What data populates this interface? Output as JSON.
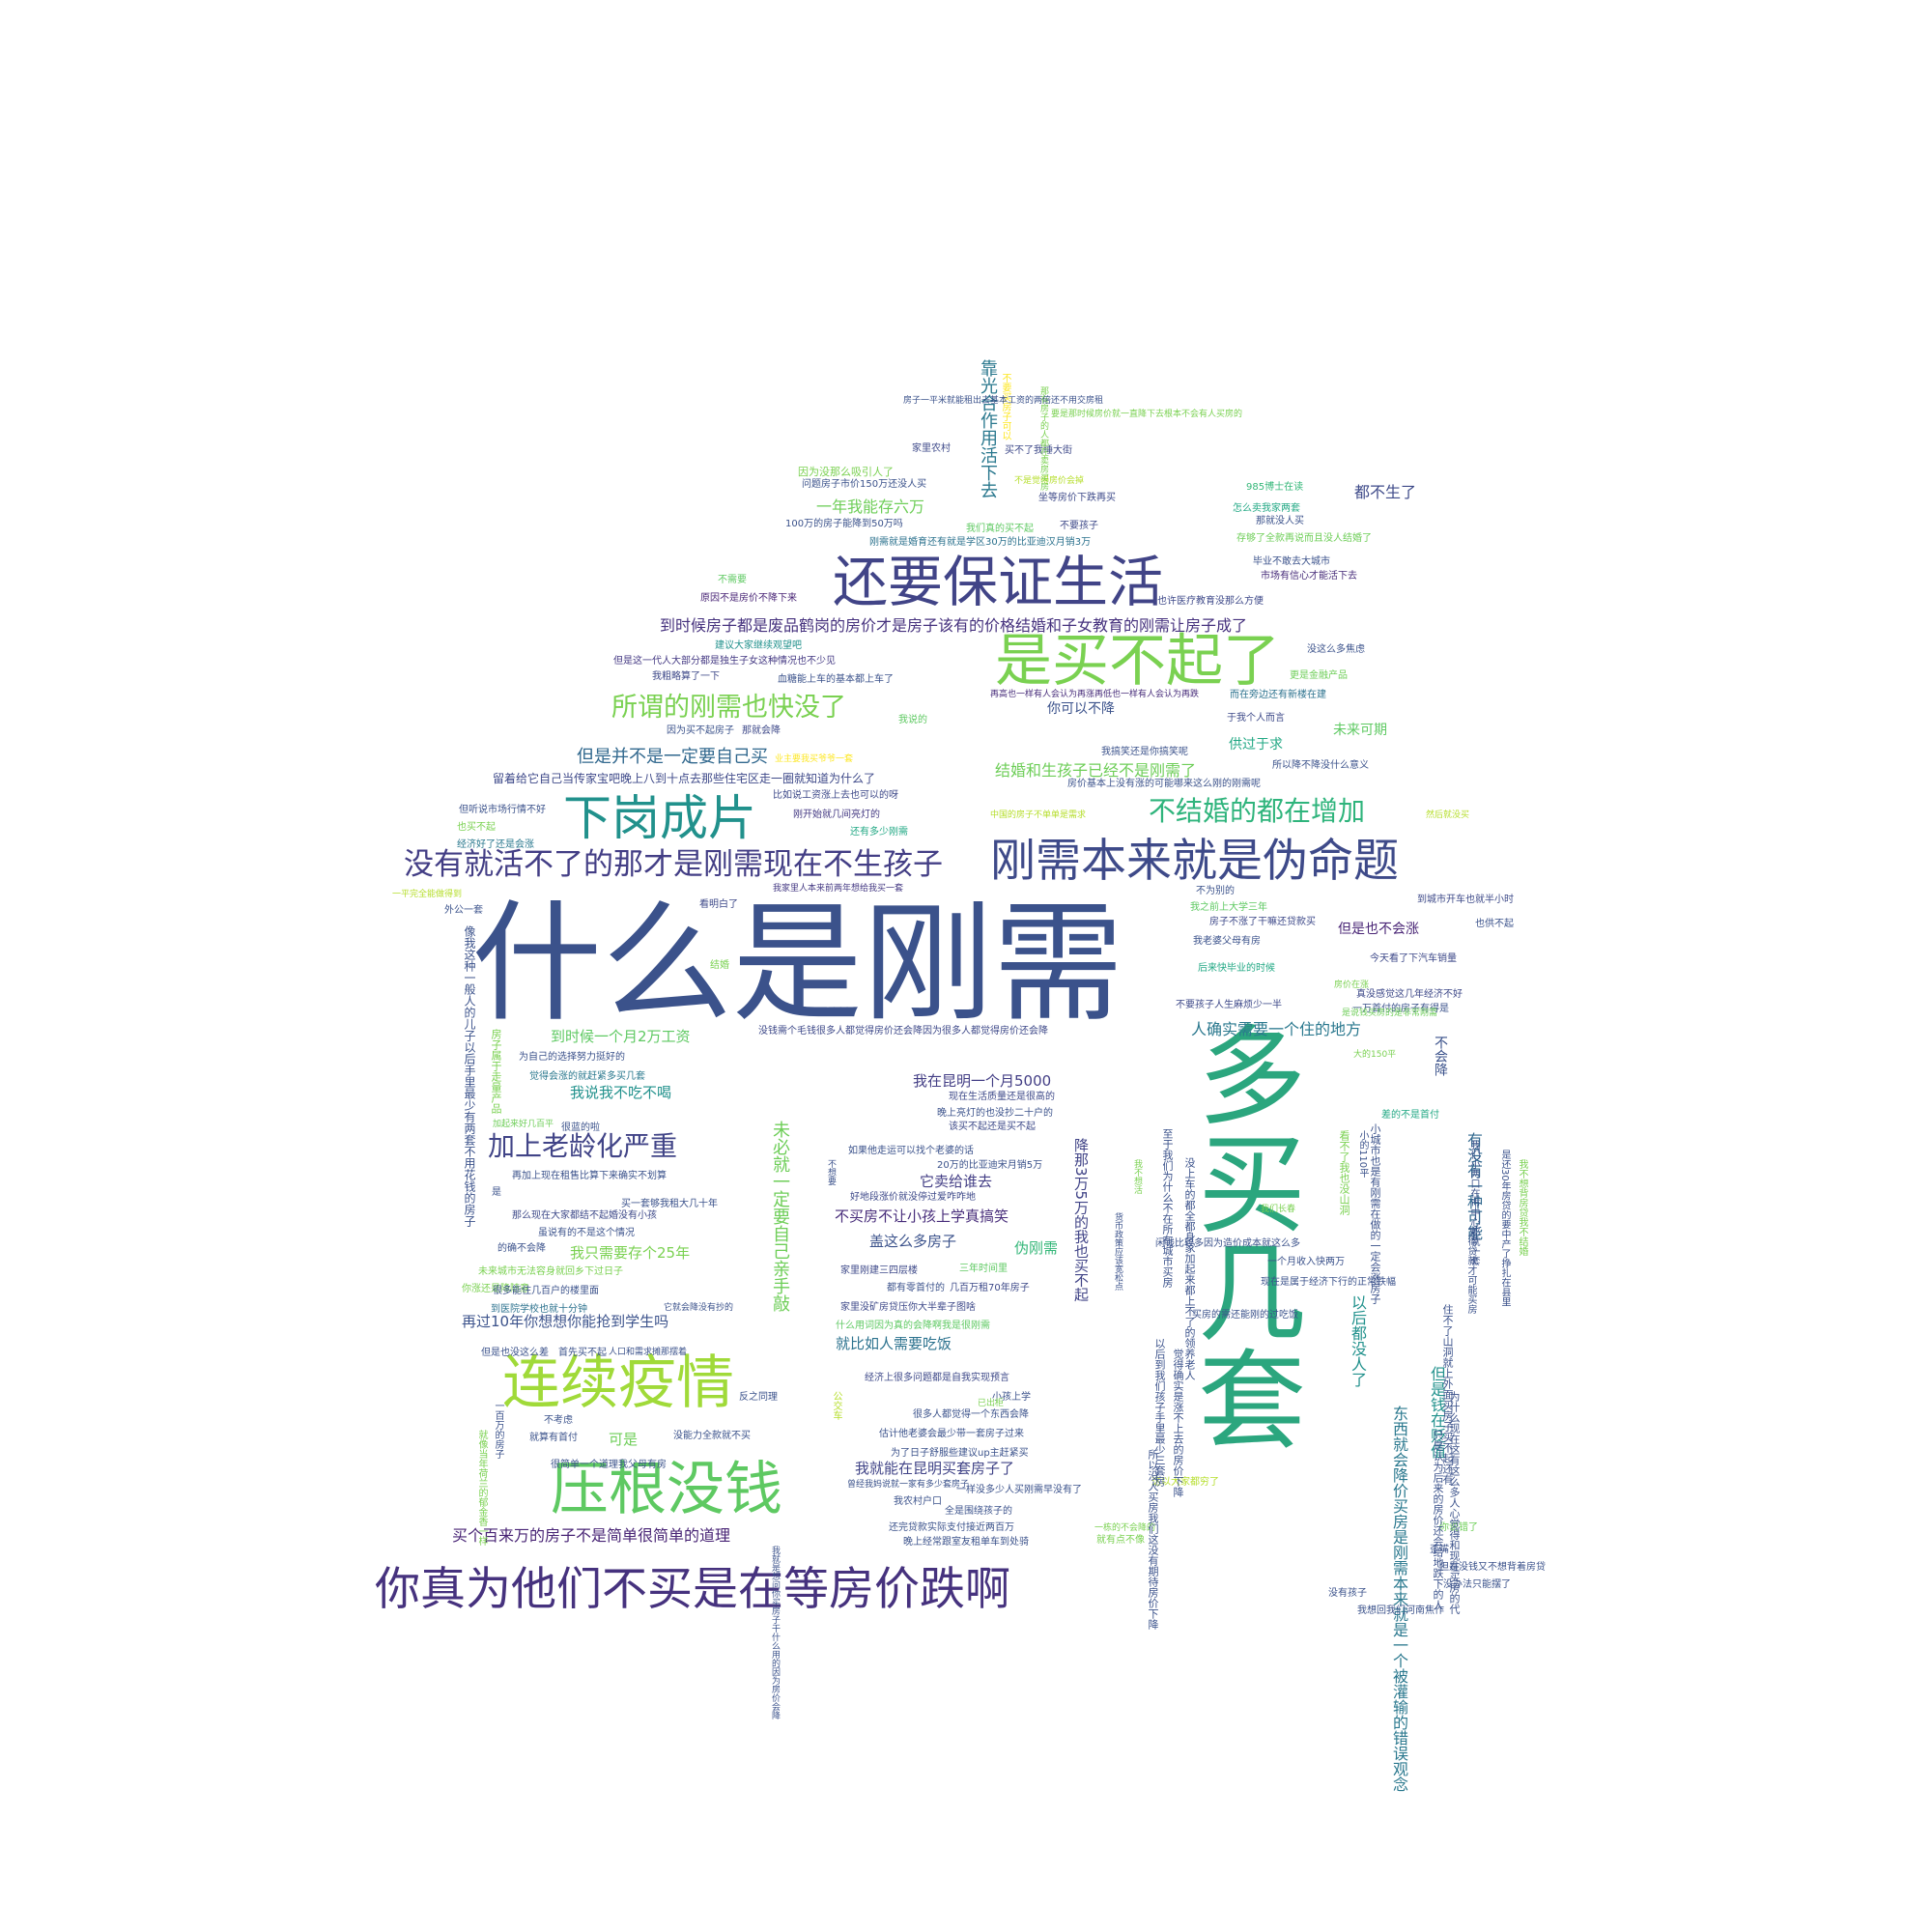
{
  "words": [
    {
      "text": "什么是刚需",
      "color": "#3b528b"
    },
    {
      "text": "多买几套",
      "color": "#2ba67e"
    },
    {
      "text": "还要保证生活",
      "color": "#414487"
    },
    {
      "text": "是买不起了",
      "color": "#7ad151"
    },
    {
      "text": "刚需本来就是伪命题",
      "color": "#3e4a89"
    },
    {
      "text": "你真为他们不买是在等房价跌啊",
      "color": "#46327e"
    },
    {
      "text": "连续疫情",
      "color": "#a0da39"
    },
    {
      "text": "压根没钱",
      "color": "#5ec962"
    },
    {
      "text": "下岗成片",
      "color": "#21918c"
    },
    {
      "text": "没有就活不了的那才是刚需现在不生孩子",
      "color": "#433e85"
    },
    {
      "text": "所谓的刚需也快没了",
      "color": "#7ad151"
    },
    {
      "text": "不结婚的都在增加",
      "color": "#2fb47c"
    },
    {
      "text": "加上老龄化严重",
      "color": "#414487"
    },
    {
      "text": "到时候房子都是废品鹤岗的房价才是房子该有的价格结婚和子女教育的刚需让房子成了",
      "color": "#46327e"
    },
    {
      "text": "但是并不是一定要自己买",
      "color": "#31688e"
    },
    {
      "text": "结婚和生孩子已经不是刚需了",
      "color": "#6ece58"
    },
    {
      "text": "留着给它自己当传家宝吧晚上八到十点去那些住宅区走一圈就知道为什么了",
      "color": "#3e4989"
    },
    {
      "text": "靠光合作用活下去",
      "color": "#2a788e"
    },
    {
      "text": "一年我能存六万",
      "color": "#6ece58"
    },
    {
      "text": "我在昆明一个月5000",
      "color": "#433e85"
    },
    {
      "text": "人确实需要一个住的地方",
      "color": "#2a788e"
    },
    {
      "text": "我说我不吃不喝",
      "color": "#21918c"
    },
    {
      "text": "到时候一个月2万工资",
      "color": "#5ec962"
    },
    {
      "text": "再过10年你想想你能抢到学生吗",
      "color": "#3b528b"
    },
    {
      "text": "我只需要存个25年",
      "color": "#7ad151"
    },
    {
      "text": "就比如人需要吃饭",
      "color": "#2c728e"
    },
    {
      "text": "盖这么多房子",
      "color": "#3b528b"
    },
    {
      "text": "不买房不让小孩上学真搞笑",
      "color": "#472c7a"
    },
    {
      "text": "它卖给谁去",
      "color": "#433e85"
    },
    {
      "text": "伪刚需",
      "color": "#35b779"
    },
    {
      "text": "我就能在昆明买套房子了",
      "color": "#414487"
    },
    {
      "text": "买个百来万的房子不是简单很简单的道理",
      "color": "#482475"
    },
    {
      "text": "都不生了",
      "color": "#3e4a89"
    },
    {
      "text": "供过于求",
      "color": "#22a884"
    },
    {
      "text": "未来可期",
      "color": "#5ec962"
    },
    {
      "text": "你可以不降",
      "color": "#3b528b"
    },
    {
      "text": "但是也不会涨",
      "color": "#482475"
    },
    {
      "text": "可是",
      "color": "#6ece58"
    },
    {
      "text": "未必就一定要自己亲手敲",
      "color": "#6ece58"
    },
    {
      "text": "降那3万5万的我也买不起",
      "color": "#414487"
    },
    {
      "text": "东西就会降价买房是刚需本来就是一个被灌输的错误观念",
      "color": "#2a788e"
    },
    {
      "text": "以后都没人了",
      "color": "#21918c"
    },
    {
      "text": "但是钱在贬值",
      "color": "#21918c"
    },
    {
      "text": "有没有一种可能",
      "color": "#31688e"
    },
    {
      "text": "不会降",
      "color": "#3b528b"
    },
    {
      "text": "家里农村",
      "color": "#3e4989"
    },
    {
      "text": "买不了我睡大街",
      "color": "#3e4989"
    },
    {
      "text": "因为没那么吸引人了",
      "color": "#7ad151"
    },
    {
      "text": "问题房子市价150万还没人买",
      "color": "#3b528b"
    },
    {
      "text": "不是觉得房价会掉",
      "color": "#b5de2b"
    },
    {
      "text": "坐等房价下跌再买",
      "color": "#3e4a89"
    },
    {
      "text": "100万的房子能降到50万吗",
      "color": "#3b528b"
    },
    {
      "text": "我们真的买不起",
      "color": "#5ec962"
    },
    {
      "text": "不要孩子",
      "color": "#3e4989"
    },
    {
      "text": "刚需就是婚育还有就是学区30万的比亚迪汉月销3万",
      "color": "#2c728e"
    },
    {
      "text": "985博士在读",
      "color": "#35b779"
    },
    {
      "text": "怎么卖我家两套",
      "color": "#22a884"
    },
    {
      "text": "那就没人买",
      "color": "#3b528b"
    },
    {
      "text": "存够了全款再说而且没人结婚了",
      "color": "#6ece58"
    },
    {
      "text": "毕业不敢去大城市",
      "color": "#3b528b"
    },
    {
      "text": "市场有信心才能活下去",
      "color": "#472c7a"
    },
    {
      "text": "也许医疗教育没那么方便",
      "color": "#3e4989"
    },
    {
      "text": "原因不是房价不降下来",
      "color": "#482475"
    },
    {
      "text": "不需要",
      "color": "#5ec962"
    },
    {
      "text": "建议大家继续观望吧",
      "color": "#21918c"
    },
    {
      "text": "但是这一代人大部分都是独生子女这种情况也不少见",
      "color": "#443983"
    },
    {
      "text": "我粗略算了一下",
      "color": "#3e4989"
    },
    {
      "text": "血糖能上车的基本都上车了",
      "color": "#3b528b"
    },
    {
      "text": "再高也一样有人会认为再涨再低也一样有人会认为再跌",
      "color": "#472c7a"
    },
    {
      "text": "而在旁边还有新楼在建",
      "color": "#2c728e"
    },
    {
      "text": "没这么多焦虑",
      "color": "#3b528b"
    },
    {
      "text": "更是金融产品",
      "color": "#6ece58"
    },
    {
      "text": "于我个人而言",
      "color": "#3e4a89"
    },
    {
      "text": "我说的",
      "color": "#5ec962"
    },
    {
      "text": "因为买不起房子",
      "color": "#3b528b"
    },
    {
      "text": "那就会降",
      "color": "#3e4989"
    },
    {
      "text": "我搞笑还是你搞笑呢",
      "color": "#3b528b"
    },
    {
      "text": "所以降不降没什么意义",
      "color": "#3b528b"
    },
    {
      "text": "房价基本上没有涨的可能哪来这么刚的刚需呢",
      "color": "#3b528b"
    },
    {
      "text": "业主要我买爷爷一套",
      "color": "#fde725"
    },
    {
      "text": "比如说工资涨上去也可以的呀",
      "color": "#3e4989"
    },
    {
      "text": "但听说市场行情不好",
      "color": "#3b528b"
    },
    {
      "text": "刚开始就几间亮灯的",
      "color": "#443983"
    },
    {
      "text": "中国的房子不单单是需求",
      "color": "#b5de2b"
    },
    {
      "text": "然后就没买",
      "color": "#b5de2b"
    },
    {
      "text": "还有多少刚需",
      "color": "#22a884"
    },
    {
      "text": "也买不起",
      "color": "#7ad151"
    },
    {
      "text": "经济好了还是会涨",
      "color": "#2a788e"
    },
    {
      "text": "我家里人本来前两年想给我买一套",
      "color": "#443983"
    },
    {
      "text": "外公一套",
      "color": "#3b528b"
    },
    {
      "text": "看明白了",
      "color": "#3e4989"
    },
    {
      "text": "不为别的",
      "color": "#3b528b"
    },
    {
      "text": "到城市开车也就半小时",
      "color": "#3e4a89"
    },
    {
      "text": "我之前上大学三年",
      "color": "#5ec962"
    },
    {
      "text": "房子不涨了干嘛还贷款买",
      "color": "#3e4989"
    },
    {
      "text": "也供不起",
      "color": "#3b528b"
    },
    {
      "text": "我老婆父母有房",
      "color": "#3b528b"
    },
    {
      "text": "后来快毕业的时候",
      "color": "#22a884"
    },
    {
      "text": "今天看了下汽车销量",
      "color": "#3e4989"
    },
    {
      "text": "真没感觉这几年经济不好",
      "color": "#3e4989"
    },
    {
      "text": "一万首付的房子有得是",
      "color": "#3b528b"
    },
    {
      "text": "不要孩子人生麻烦少一半",
      "color": "#3e4989"
    },
    {
      "text": "结婚",
      "color": "#7ad151"
    },
    {
      "text": "没钱需个毛钱很多人都觉得房价还会降因为很多人都觉得房价还会降",
      "color": "#3e4989"
    },
    {
      "text": "为自己的选择努力挺好的",
      "color": "#3b528b"
    },
    {
      "text": "觉得会涨的就赶紧多买几套",
      "color": "#2a788e"
    },
    {
      "text": "大的150平",
      "color": "#7ad151"
    },
    {
      "text": "现在生活质量还是很高的",
      "color": "#3e4989"
    },
    {
      "text": "晚上亮灯的也没抄二十户的",
      "color": "#3b528b"
    },
    {
      "text": "该买不起还是买不起",
      "color": "#3e4a89"
    },
    {
      "text": "如果他走运可以找个老婆的话",
      "color": "#3b528b"
    },
    {
      "text": "20万的比亚迪宋月销5万",
      "color": "#3b528b"
    },
    {
      "text": "差的不是首付",
      "color": "#22a884"
    },
    {
      "text": "好地段涨价就没停过爱咋咋地",
      "color": "#3e4989"
    },
    {
      "text": "再加上现在租售比算下来确实不划算",
      "color": "#3b528b"
    },
    {
      "text": "买一套够我租大几十年",
      "color": "#3b528b"
    },
    {
      "text": "那么现在大家都结不起婚没有小孩",
      "color": "#3e4989"
    },
    {
      "text": "虽说有的不是这个情况",
      "color": "#3b528b"
    },
    {
      "text": "的确不会降",
      "color": "#3b528b"
    },
    {
      "text": "未来城市无法容身就回乡下过日子",
      "color": "#7ad151"
    },
    {
      "text": "你涨还是降随意",
      "color": "#7ad151"
    },
    {
      "text": "很多能住几百户的楼里面",
      "color": "#3b528b"
    },
    {
      "text": "到医院学校也就十分钟",
      "color": "#2c728e"
    },
    {
      "text": "它就会降没有抄的",
      "color": "#3b528b"
    },
    {
      "text": "但是也没这么差",
      "color": "#3b528b"
    },
    {
      "text": "首先买不起",
      "color": "#3b528b"
    },
    {
      "text": "人口和需求摊那摆着",
      "color": "#3b528b"
    },
    {
      "text": "家里刚建三四层楼",
      "color": "#3e4989"
    },
    {
      "text": "都有零首付的",
      "color": "#3b528b"
    },
    {
      "text": "几百万租70年房子",
      "color": "#3e4a89"
    },
    {
      "text": "家里没矿房贷压你大半辈子图啥",
      "color": "#3e4989"
    },
    {
      "text": "三年时间里",
      "color": "#5ec962"
    },
    {
      "text": "什么用词因为真的会降啊我是很刚需",
      "color": "#5ec962"
    },
    {
      "text": "经济上很多问题都是自我实现预言",
      "color": "#3e4989"
    },
    {
      "text": "小孩上学",
      "color": "#3b528b"
    },
    {
      "text": "很多人都觉得一个东西会降",
      "color": "#3b528b"
    },
    {
      "text": "估计他老婆会最少带一套房子过来",
      "color": "#3b528b"
    },
    {
      "text": "为了日子舒服些建议up主赶紧买",
      "color": "#3b528b"
    },
    {
      "text": "一样没多少人买刚需早没有了",
      "color": "#3b528b"
    },
    {
      "text": "我农村户口",
      "color": "#3b528b"
    },
    {
      "text": "全是围绕孩子的",
      "color": "#3b528b"
    },
    {
      "text": "还完贷款实际支付接近两百万",
      "color": "#3b528b"
    },
    {
      "text": "晚上经常跟室友租单车到处骑",
      "color": "#3b528b"
    },
    {
      "text": "一栋的不会降的",
      "color": "#7ad151"
    },
    {
      "text": "就算有首付",
      "color": "#3b528b"
    },
    {
      "text": "没能力全款就不买",
      "color": "#3b528b"
    },
    {
      "text": "很简单一个道理我父母有房",
      "color": "#3b528b"
    },
    {
      "text": "反之同理",
      "color": "#3b528b"
    },
    {
      "text": "不考虑",
      "color": "#3b528b"
    },
    {
      "text": "已出柜",
      "color": "#7ad151"
    },
    {
      "text": "这以大家都穷了",
      "color": "#b5de2b"
    },
    {
      "text": "你说错了",
      "color": "#6ece58"
    },
    {
      "text": "歪嘴",
      "color": "#3b528b"
    },
    {
      "text": "但是没钱又不想背着房贷",
      "color": "#3b528b"
    },
    {
      "text": "没办法只能摆了",
      "color": "#3b528b"
    },
    {
      "text": "没有孩子",
      "color": "#3b528b"
    },
    {
      "text": "我想回我们河南焦作",
      "color": "#3b528b"
    },
    {
      "text": "闲钱比较多因为造价成本就这么多",
      "color": "#3b528b"
    },
    {
      "text": "一个月收入快两万",
      "color": "#3b528b"
    },
    {
      "text": "现在是属于经济下行的正常跌幅",
      "color": "#3b528b"
    },
    {
      "text": "买房的需还能刚的过吃饭",
      "color": "#3b528b"
    },
    {
      "text": "我们长春",
      "color": "#7ad151"
    },
    {
      "text": "房价在涨",
      "color": "#7ad151"
    },
    {
      "text": "是说钱买房的是非常刚需",
      "color": "#6ece58"
    },
    {
      "text": "加起来好几百平",
      "color": "#6ece58"
    },
    {
      "text": "很蓝的啦",
      "color": "#3b528b"
    },
    {
      "text": "一平完全能做得到",
      "color": "#b5de2b"
    },
    {
      "text": "是",
      "color": "#3b528b"
    },
    {
      "text": "像我这种一般人的儿子以后手里最少有两套不用花钱的房子",
      "color": "#3b528b"
    },
    {
      "text": "房子属于走量产品",
      "color": "#7ad151"
    },
    {
      "text": "以后到我们孩子手里最少三套房",
      "color": "#3b528b"
    },
    {
      "text": "觉得确实是涨不上去的房价下降",
      "color": "#3b528b"
    },
    {
      "text": "所以没人买房我们这没有期待房价下降",
      "color": "#3b528b"
    },
    {
      "text": "至于我们为什么不在所在城市买房",
      "color": "#3b528b"
    },
    {
      "text": "没上车的都全都身家加起来都上不了的领养老人",
      "color": "#3b528b"
    },
    {
      "text": "住不了山洞就上外面买房子买不起还有",
      "color": "#3b528b"
    },
    {
      "text": "为什么现在这有这么多人心觉得和现在买房的代",
      "color": "#3b528b"
    },
    {
      "text": "只是认为后来的房价还会给地跌下的人",
      "color": "#3b528b"
    },
    {
      "text": "小城市也是有刚需在做的一定会涨房子",
      "color": "#3b528b"
    },
    {
      "text": "看不了我也没山洞",
      "color": "#7ad151"
    },
    {
      "text": "小的110平",
      "color": "#3b528b"
    },
    {
      "text": "我们小两口在市中心那就一套",
      "color": "#3b528b"
    },
    {
      "text": "是还30年房贷的要中产了挣扎在县里",
      "color": "#3b528b"
    },
    {
      "text": "我不想背房贷我不结婚",
      "color": "#7ad151"
    },
    {
      "text": "又得贷款才可能买房",
      "color": "#3b528b"
    },
    {
      "text": "就像当年荷兰的郁金香一样",
      "color": "#7ad151"
    },
    {
      "text": "一百万的房子",
      "color": "#3b528b"
    },
    {
      "text": "公交车",
      "color": "#b5de2b"
    },
    {
      "text": "不要买房子可以",
      "color": "#fde725"
    },
    {
      "text": "那有房子的人都在卖房买房",
      "color": "#7ad151"
    },
    {
      "text": "房子一平米就能租出去基本工资的两倍还不用交房租",
      "color": "#3b528b"
    },
    {
      "text": "要是那时候房价就一直降下去根本不会有人买房的",
      "color": "#7ad151"
    },
    {
      "text": "曾经我妈说就一家有多少套房子",
      "color": "#3b528b"
    },
    {
      "text": "我就是想问你买房子干什么用的因为房价会降",
      "color": "#3b528b"
    },
    {
      "text": "货币政策应该宽松点",
      "color": "#3b528b"
    },
    {
      "text": "就有点不像",
      "color": "#7ad151"
    },
    {
      "text": "不想要",
      "color": "#3b528b"
    },
    {
      "text": "我不想活",
      "color": "#7ad151"
    }
  ]
}
